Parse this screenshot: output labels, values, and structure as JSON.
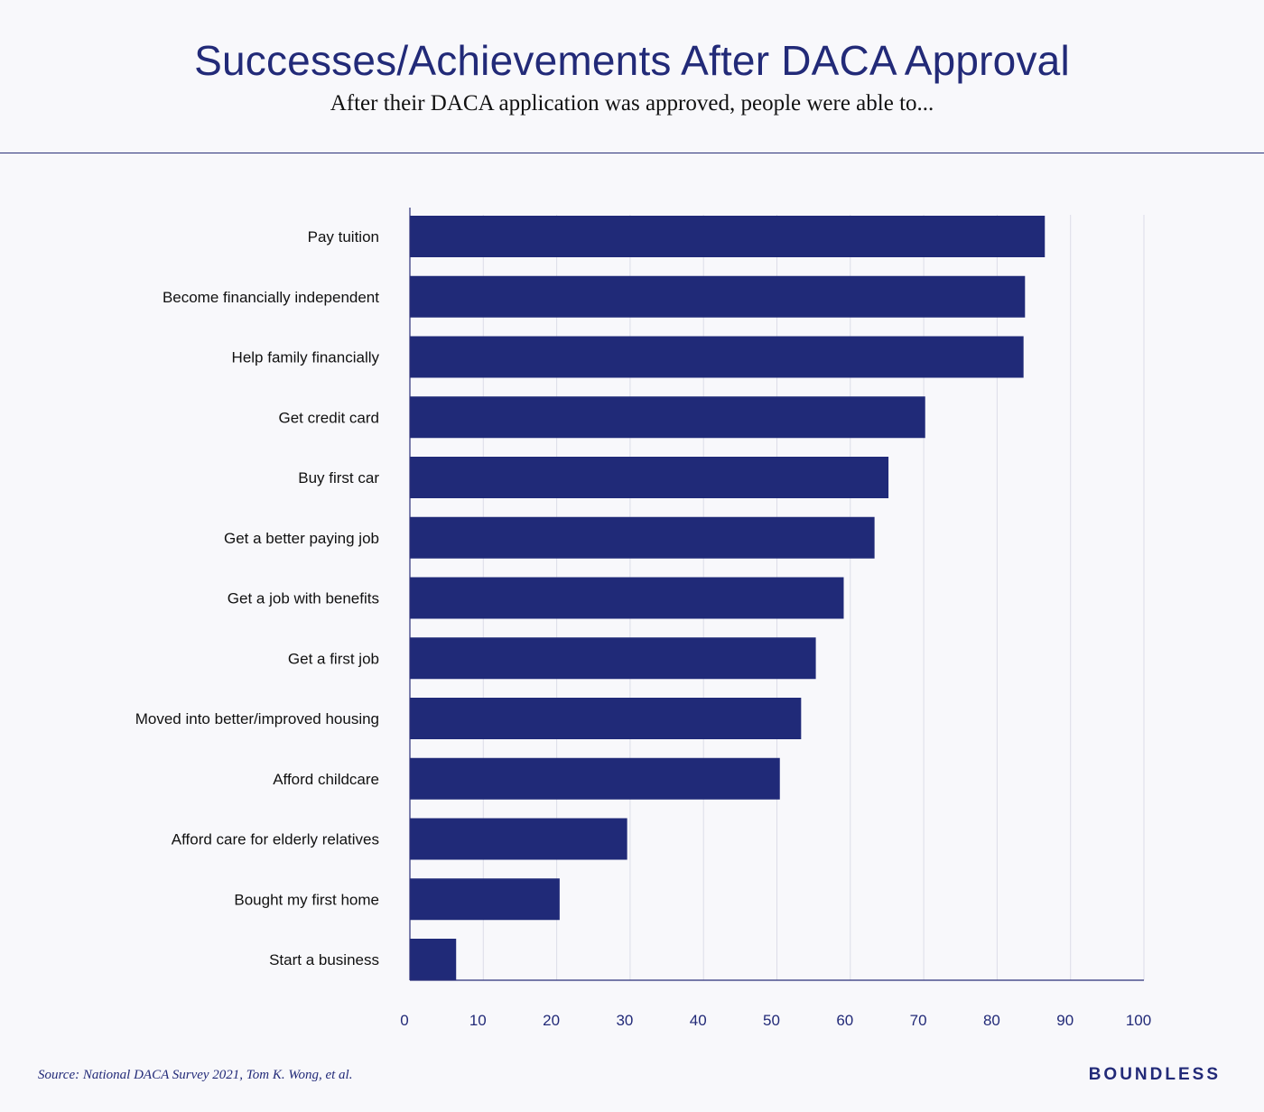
{
  "header": {
    "title": "Successes/Achievements After DACA Approval",
    "subtitle": "After their DACA application was approved, people were able to..."
  },
  "footer": {
    "source": "Source: National DACA Survey 2021, Tom K. Wong, et al.",
    "brand": "BOUNDLESS"
  },
  "colors": {
    "bar": "#202a78",
    "axis": "#2a2f78",
    "grid": "#dcdde8",
    "label": "#111111",
    "tick": "#222a78"
  },
  "chart_data": {
    "type": "bar",
    "orientation": "horizontal",
    "title": "Successes/Achievements After DACA Approval",
    "subtitle": "After their DACA application was approved, people were able to...",
    "categories": [
      "Pay tuition",
      "Become financially independent",
      "Help family financially",
      "Get credit card",
      "Buy first car",
      "Get a better paying job",
      "Get a job with benefits",
      "Get a first job",
      "Moved into better/improved housing",
      "Afford childcare",
      "Afford care for elderly relatives",
      "Bought my first home",
      "Start a business"
    ],
    "values": [
      86.5,
      83.8,
      83.6,
      70.2,
      65.2,
      63.3,
      59.1,
      55.3,
      53.3,
      50.4,
      29.6,
      20.4,
      6.3
    ],
    "xlim": [
      0,
      100
    ],
    "xticks": [
      0,
      10,
      20,
      30,
      40,
      50,
      60,
      70,
      80,
      90,
      100
    ],
    "grid": true,
    "legend": "none"
  }
}
